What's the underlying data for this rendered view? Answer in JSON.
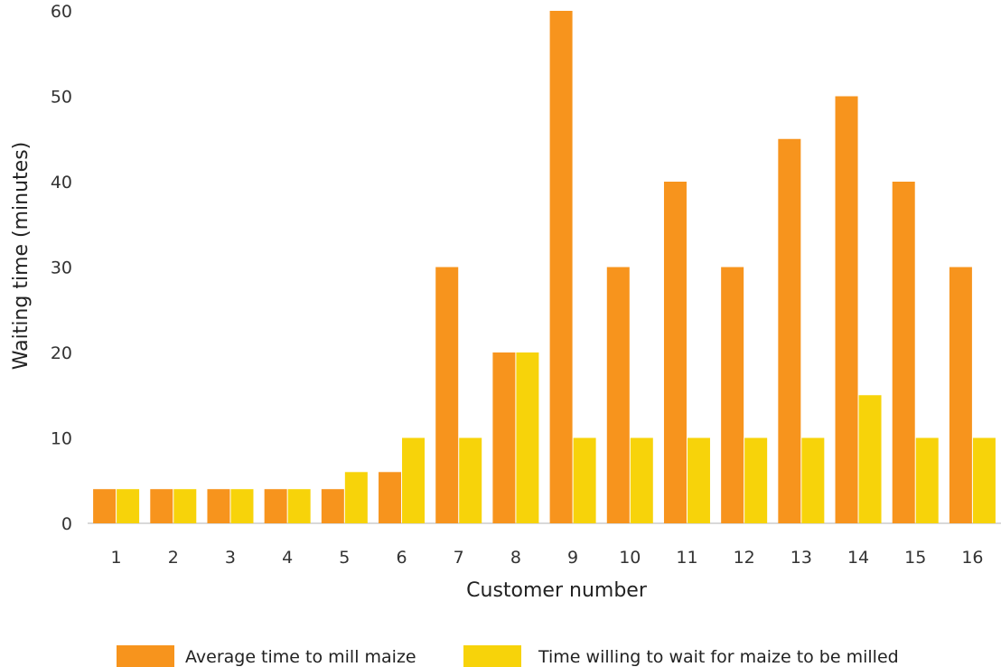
{
  "chart_data": {
    "type": "bar",
    "title": "",
    "xlabel": "Customer number",
    "ylabel": "Waiting time (minutes)",
    "ylim": [
      0,
      60
    ],
    "yticks": [
      0,
      10,
      20,
      30,
      40,
      50,
      60
    ],
    "categories": [
      "1",
      "2",
      "3",
      "4",
      "5",
      "6",
      "7",
      "8",
      "9",
      "10",
      "11",
      "12",
      "13",
      "14",
      "15",
      "16"
    ],
    "series": [
      {
        "name": "Average time to mill maize",
        "color": "#F7941D",
        "values": [
          4,
          4,
          4,
          4,
          4,
          6,
          30,
          20,
          60,
          30,
          40,
          30,
          45,
          50,
          40,
          30
        ]
      },
      {
        "name": "Time willing to wait for maize to be milled",
        "color": "#F7D30A",
        "values": [
          4,
          4,
          4,
          4,
          6,
          10,
          10,
          20,
          10,
          10,
          10,
          10,
          10,
          15,
          10,
          10
        ]
      }
    ],
    "grid": false,
    "legend_position": "bottom"
  }
}
